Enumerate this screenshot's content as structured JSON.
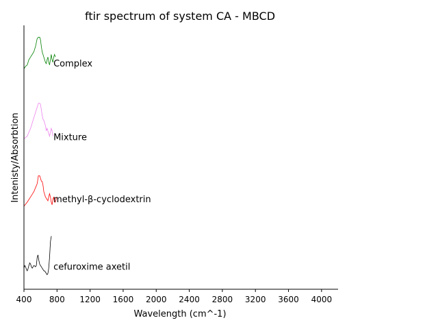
{
  "chart_data": {
    "type": "line",
    "title": "ftir spectrum of system CA - MBCD",
    "xlabel": "Wavelength (cm^-1)",
    "ylabel": "Intenisty/Absorbtion",
    "xlim": [
      400,
      4200
    ],
    "xticks": [
      400,
      800,
      1200,
      1600,
      2000,
      2400,
      2800,
      3200,
      3600,
      4000
    ],
    "ylim": [
      0,
      1
    ],
    "yticks_visible": false,
    "grid": false,
    "series": [
      {
        "name": "cefuroxime axetil",
        "color": "#000000",
        "label_anchor": [
          740,
          0.085
        ],
        "points": [
          [
            400,
            0.08
          ],
          [
            410,
            0.09
          ],
          [
            420,
            0.085
          ],
          [
            430,
            0.075
          ],
          [
            440,
            0.07
          ],
          [
            450,
            0.078
          ],
          [
            460,
            0.09
          ],
          [
            470,
            0.1
          ],
          [
            480,
            0.095
          ],
          [
            490,
            0.085
          ],
          [
            500,
            0.08
          ],
          [
            510,
            0.085
          ],
          [
            520,
            0.09
          ],
          [
            530,
            0.088
          ],
          [
            540,
            0.085
          ],
          [
            550,
            0.09
          ],
          [
            560,
            0.12
          ],
          [
            570,
            0.13
          ],
          [
            580,
            0.11
          ],
          [
            590,
            0.095
          ],
          [
            600,
            0.09
          ],
          [
            610,
            0.085
          ],
          [
            620,
            0.08
          ],
          [
            630,
            0.075
          ],
          [
            640,
            0.07
          ],
          [
            650,
            0.07
          ],
          [
            660,
            0.065
          ],
          [
            670,
            0.06
          ],
          [
            680,
            0.055
          ],
          [
            690,
            0.06
          ],
          [
            700,
            0.08
          ],
          [
            710,
            0.12
          ],
          [
            720,
            0.18
          ],
          [
            730,
            0.2
          ],
          [
            735,
            0.2
          ]
        ]
      },
      {
        "name": "methyl-β-cyclodextrin",
        "color": "#ff0000",
        "label_anchor": [
          740,
          0.34
        ],
        "points": [
          [
            400,
            0.315
          ],
          [
            420,
            0.322
          ],
          [
            440,
            0.33
          ],
          [
            460,
            0.34
          ],
          [
            480,
            0.35
          ],
          [
            500,
            0.36
          ],
          [
            520,
            0.37
          ],
          [
            540,
            0.385
          ],
          [
            560,
            0.4
          ],
          [
            575,
            0.43
          ],
          [
            590,
            0.43
          ],
          [
            600,
            0.42
          ],
          [
            610,
            0.41
          ],
          [
            620,
            0.408
          ],
          [
            630,
            0.395
          ],
          [
            640,
            0.37
          ],
          [
            650,
            0.36
          ],
          [
            660,
            0.35
          ],
          [
            670,
            0.345
          ],
          [
            680,
            0.34
          ],
          [
            690,
            0.335
          ],
          [
            700,
            0.35
          ],
          [
            710,
            0.362
          ],
          [
            720,
            0.35
          ],
          [
            730,
            0.33
          ],
          [
            740,
            0.32
          ],
          [
            750,
            0.34
          ],
          [
            760,
            0.35
          ],
          [
            770,
            0.33
          ],
          [
            780,
            0.33
          ],
          [
            800,
            0.35
          ]
        ]
      },
      {
        "name": "Mixture",
        "color": "#ee82ee",
        "label_anchor": [
          740,
          0.575
        ],
        "points": [
          [
            400,
            0.57
          ],
          [
            420,
            0.575
          ],
          [
            440,
            0.58
          ],
          [
            460,
            0.595
          ],
          [
            480,
            0.61
          ],
          [
            500,
            0.63
          ],
          [
            520,
            0.65
          ],
          [
            540,
            0.67
          ],
          [
            560,
            0.69
          ],
          [
            575,
            0.705
          ],
          [
            590,
            0.705
          ],
          [
            600,
            0.7
          ],
          [
            610,
            0.68
          ],
          [
            620,
            0.66
          ],
          [
            630,
            0.645
          ],
          [
            640,
            0.64
          ],
          [
            650,
            0.63
          ],
          [
            660,
            0.62
          ],
          [
            670,
            0.6
          ],
          [
            680,
            0.61
          ],
          [
            690,
            0.6
          ],
          [
            700,
            0.59
          ],
          [
            710,
            0.58
          ],
          [
            720,
            0.595
          ],
          [
            730,
            0.61
          ],
          [
            740,
            0.6
          ],
          [
            750,
            0.58
          ]
        ]
      },
      {
        "name": "Complex",
        "color": "#008000",
        "label_anchor": [
          740,
          0.855
        ],
        "points": [
          [
            400,
            0.835
          ],
          [
            420,
            0.845
          ],
          [
            440,
            0.85
          ],
          [
            460,
            0.87
          ],
          [
            480,
            0.88
          ],
          [
            500,
            0.89
          ],
          [
            520,
            0.9
          ],
          [
            540,
            0.92
          ],
          [
            560,
            0.95
          ],
          [
            575,
            0.955
          ],
          [
            590,
            0.955
          ],
          [
            600,
            0.945
          ],
          [
            610,
            0.92
          ],
          [
            620,
            0.9
          ],
          [
            630,
            0.89
          ],
          [
            640,
            0.88
          ],
          [
            650,
            0.87
          ],
          [
            660,
            0.86
          ],
          [
            670,
            0.855
          ],
          [
            680,
            0.87
          ],
          [
            690,
            0.88
          ],
          [
            700,
            0.86
          ],
          [
            710,
            0.85
          ],
          [
            720,
            0.87
          ],
          [
            730,
            0.89
          ],
          [
            740,
            0.87
          ],
          [
            750,
            0.86
          ],
          [
            760,
            0.88
          ],
          [
            770,
            0.89
          ],
          [
            780,
            0.88
          ]
        ]
      }
    ]
  }
}
